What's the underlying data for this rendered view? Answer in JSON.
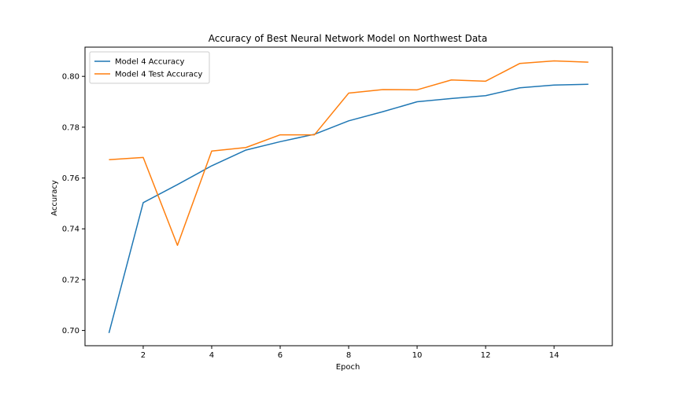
{
  "chart_data": {
    "type": "line",
    "title": "Accuracy of Best Neural Network Model on Northwest Data",
    "xlabel": "Epoch",
    "ylabel": "Accuracy",
    "xlim": [
      0.3,
      15.7
    ],
    "ylim": [
      0.694,
      0.8115
    ],
    "x_ticks": [
      2,
      4,
      6,
      8,
      10,
      12,
      14
    ],
    "y_ticks": [
      0.7,
      0.72,
      0.74,
      0.76,
      0.78,
      0.8
    ],
    "y_tick_labels": [
      "0.70",
      "0.72",
      "0.74",
      "0.76",
      "0.78",
      "0.80"
    ],
    "grid": false,
    "legend_position": "upper-left",
    "x": [
      1,
      2,
      3,
      4,
      5,
      6,
      7,
      8,
      9,
      10,
      11,
      12,
      13,
      14,
      15
    ],
    "series": [
      {
        "name": "Model 4 Accuracy",
        "color": "#1f77b4",
        "values": [
          0.699,
          0.7503,
          0.7574,
          0.7648,
          0.771,
          0.7743,
          0.7772,
          0.7825,
          0.7861,
          0.79,
          0.7913,
          0.7924,
          0.7955,
          0.7966,
          0.7969
        ]
      },
      {
        "name": "Model 4 Test Accuracy",
        "color": "#ff7f0e",
        "values": [
          0.7672,
          0.7681,
          0.7335,
          0.7706,
          0.772,
          0.777,
          0.777,
          0.7934,
          0.7948,
          0.7947,
          0.7986,
          0.7981,
          0.8051,
          0.8061,
          0.8056
        ]
      }
    ]
  }
}
